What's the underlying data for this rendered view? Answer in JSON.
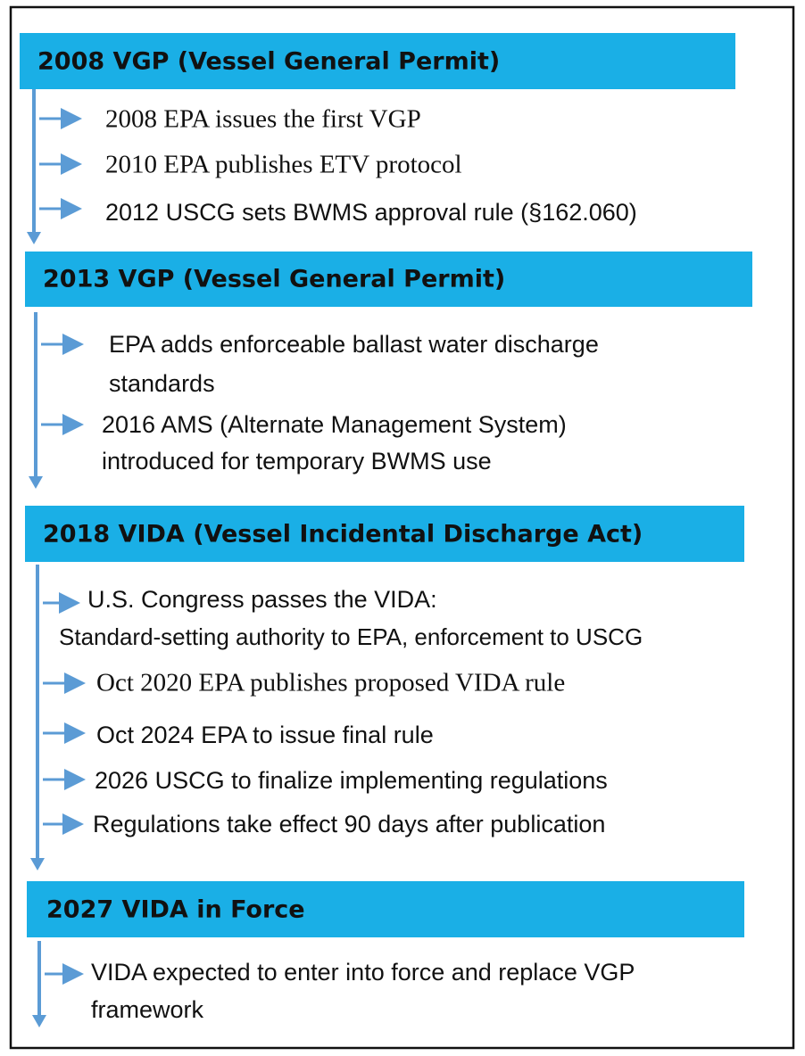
{
  "sections": [
    {
      "title": "2008 VGP (Vessel General Permit)",
      "items": [
        {
          "lines": [
            "2008 EPA issues the first VGP"
          ]
        },
        {
          "lines": [
            "2010 EPA publishes ETV protocol"
          ]
        },
        {
          "lines": [
            "2012 USCG sets BWMS approval rule (§162.060)"
          ]
        }
      ]
    },
    {
      "title": "2013 VGP (Vessel General Permit)",
      "items": [
        {
          "lines": [
            "EPA adds enforceable ballast water discharge",
            "standards"
          ]
        },
        {
          "lines": [
            "2016 AMS (Alternate Management System)",
            "introduced for temporary BWMS use"
          ]
        }
      ]
    },
    {
      "title": "2018 VIDA (Vessel Incidental Discharge Act)",
      "items": [
        {
          "lines": [
            "U.S. Congress passes the VIDA:",
            "Standard-setting authority to EPA, enforcement to USCG"
          ]
        },
        {
          "lines": [
            "Oct 2020 EPA publishes proposed VIDA rule"
          ]
        },
        {
          "lines": [
            "Oct 2024 EPA to issue final rule"
          ]
        },
        {
          "lines": [
            "2026 USCG to finalize implementing regulations"
          ]
        },
        {
          "lines": [
            "Regulations take effect 90 days after publication"
          ]
        }
      ]
    },
    {
      "title": "2027 VIDA in Force",
      "items": [
        {
          "lines": [
            "VIDA expected to enter into force and replace VGP",
            "framework"
          ]
        }
      ]
    }
  ]
}
